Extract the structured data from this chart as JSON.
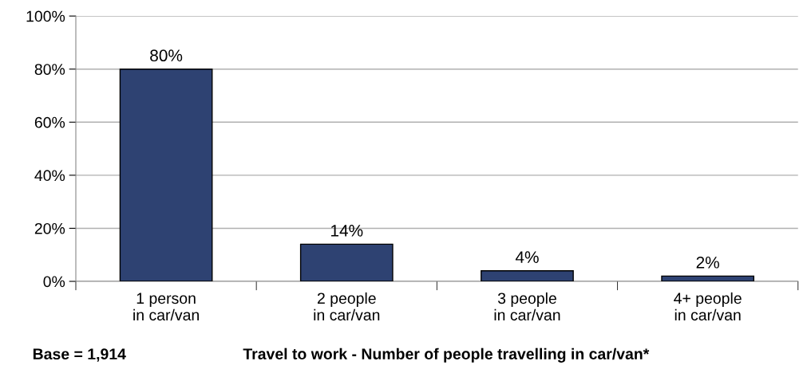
{
  "chart_data": {
    "type": "bar",
    "title": "Travel to work - Number of people travelling in car/van*",
    "annotations": [
      "Base = 1,914"
    ],
    "categories": [
      "1 person\nin car/van",
      "2 people\nin car/van",
      "3 people\nin car/van",
      "4+ people\nin car/van"
    ],
    "values": [
      80,
      14,
      4,
      2
    ],
    "value_labels": [
      "80%",
      "14%",
      "4%",
      "2%"
    ],
    "color": "#2e4272",
    "ylim": [
      0,
      100
    ],
    "yticks": [
      {
        "value": 0,
        "label": "0%"
      },
      {
        "value": 20,
        "label": "20%"
      },
      {
        "value": 40,
        "label": "40%"
      },
      {
        "value": 60,
        "label": "60%"
      },
      {
        "value": 80,
        "label": "80%"
      },
      {
        "value": 100,
        "label": "100%"
      }
    ],
    "grid": "y"
  }
}
